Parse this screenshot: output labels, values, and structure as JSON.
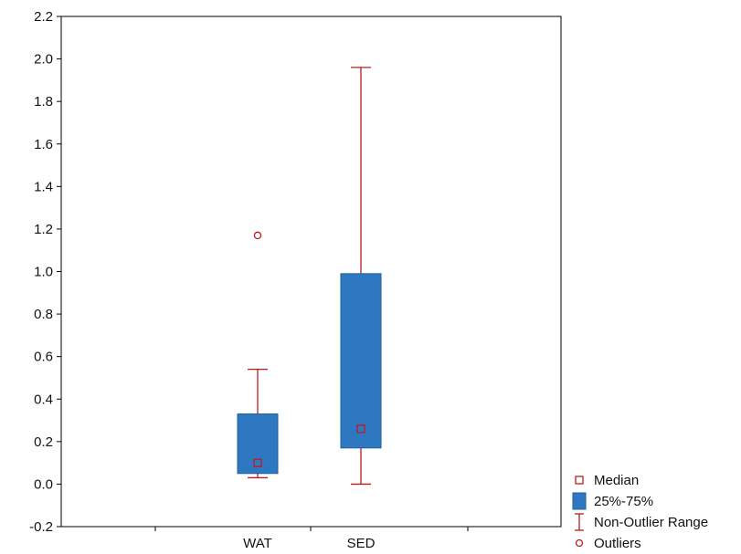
{
  "chart_data": {
    "type": "boxplot",
    "title": "",
    "xlabel": "",
    "ylabel": "",
    "ylim": [
      -0.2,
      2.2
    ],
    "yticks": [
      -0.2,
      0.0,
      0.2,
      0.4,
      0.6,
      0.8,
      1.0,
      1.2,
      1.4,
      1.6,
      1.8,
      2.0,
      2.2
    ],
    "ytick_labels": [
      "-0.2",
      "0.0",
      "0.2",
      "0.4",
      "0.6",
      "0.8",
      "1.0",
      "1.2",
      "1.4",
      "1.6",
      "1.8",
      "2.0",
      "2.2"
    ],
    "grid": false,
    "categories": [
      "WAT",
      "SED"
    ],
    "boxes": [
      {
        "category": "WAT",
        "whisker_low": 0.03,
        "q1": 0.05,
        "median": 0.1,
        "q3": 0.33,
        "whisker_high": 0.54,
        "outliers": [
          1.17
        ]
      },
      {
        "category": "SED",
        "whisker_low": 0.0,
        "q1": 0.17,
        "median": 0.26,
        "q3": 0.99,
        "whisker_high": 1.96,
        "outliers": []
      }
    ],
    "legend": {
      "position": "bottom-right-outside",
      "items": [
        {
          "key": "median",
          "label": "Median"
        },
        {
          "key": "box",
          "label": "25%-75%"
        },
        {
          "key": "range",
          "label": "Non-Outlier Range"
        },
        {
          "key": "outlier",
          "label": "Outliers"
        }
      ]
    },
    "colors": {
      "box_fill": "#2e78c2",
      "box_stroke": "#1f5f9e",
      "whisker": "#b81e1e",
      "median_marker": "#b81e1e",
      "outlier": "#b81e1e",
      "axis": "#000000"
    }
  }
}
